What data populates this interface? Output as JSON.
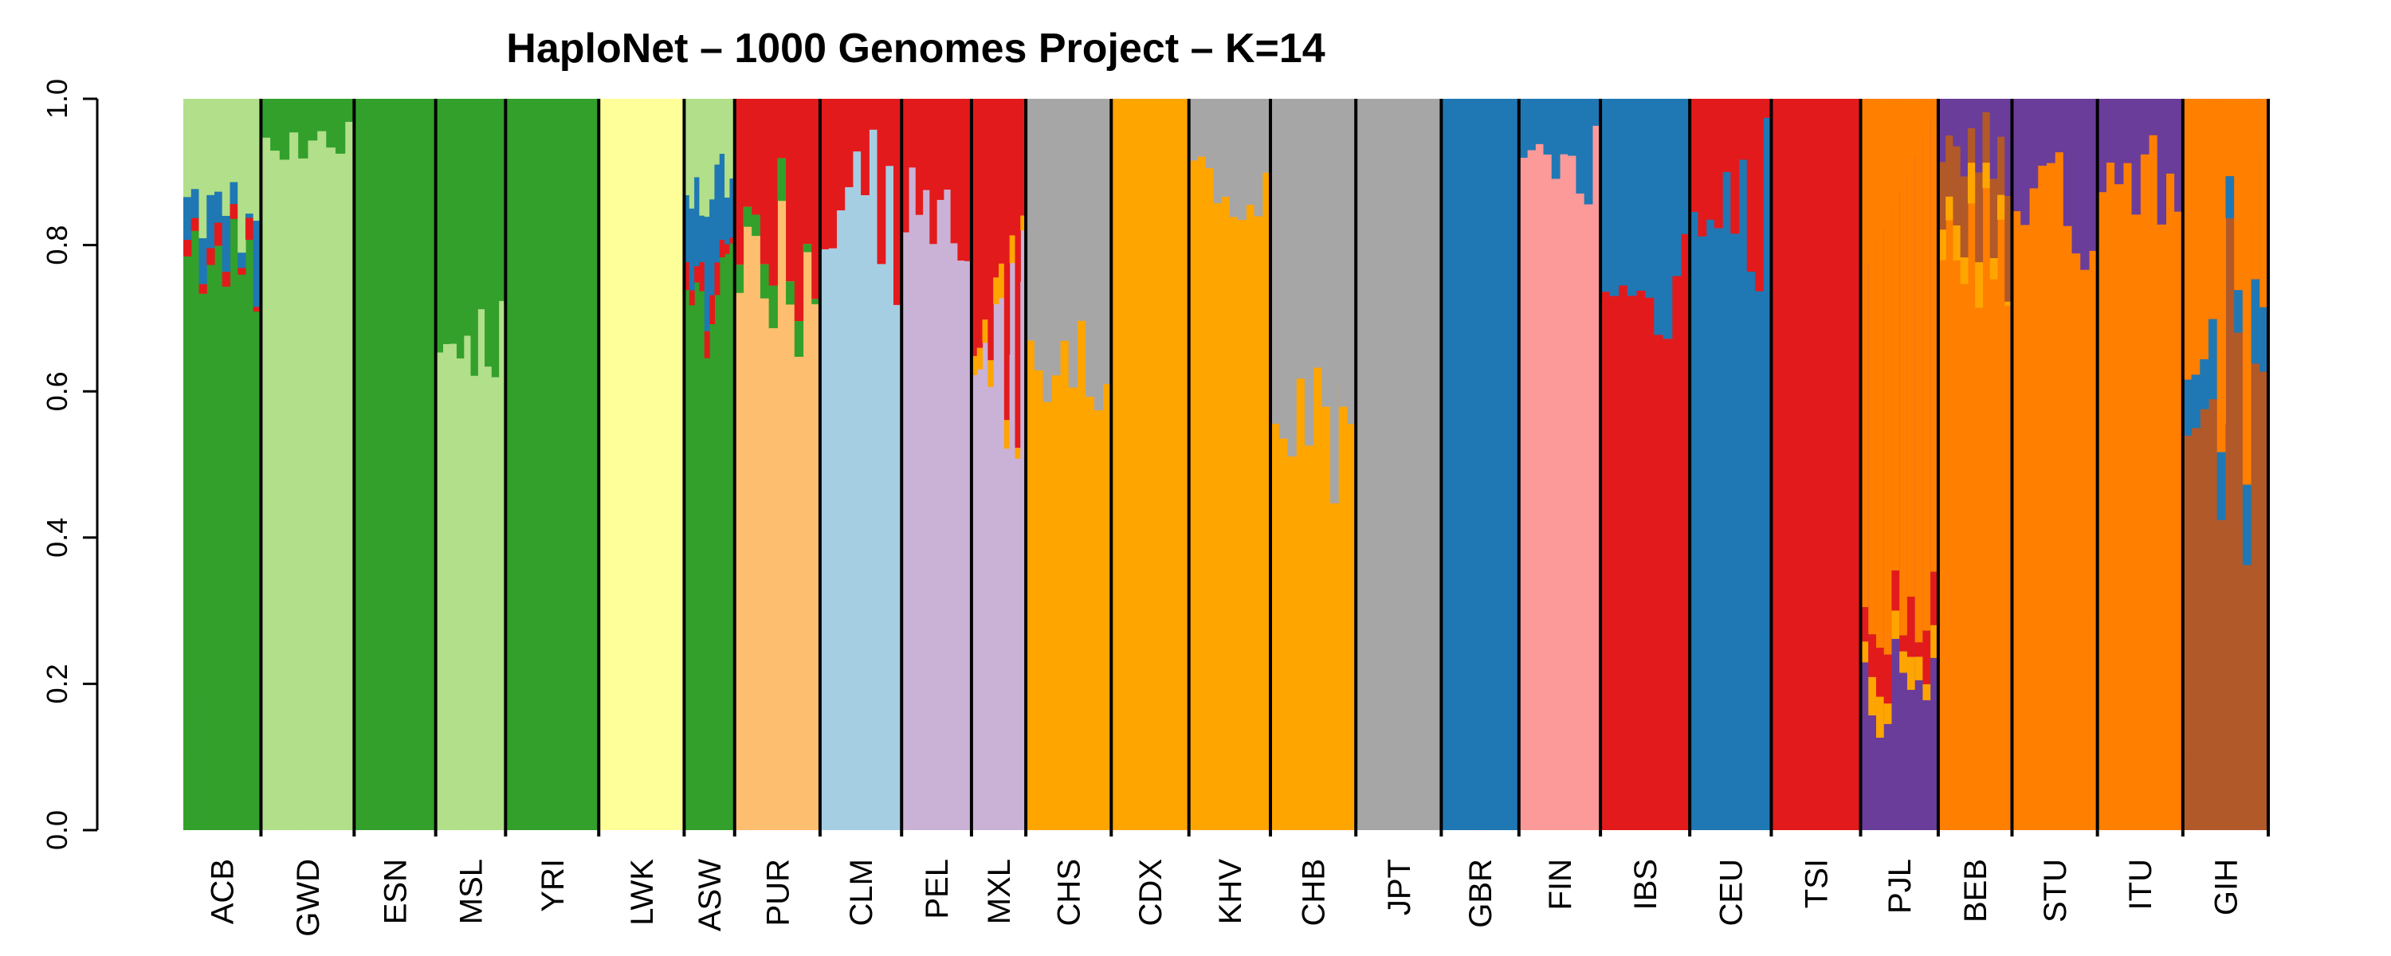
{
  "chart_data": {
    "type": "stacked-bar-admixture",
    "title": "HaploNet – 1000 Genomes Project – K=14",
    "xlabel": "",
    "ylabel": "",
    "ylim": [
      0,
      1
    ],
    "yticks": [
      "0.0",
      "0.2",
      "0.4",
      "0.6",
      "0.8",
      "1.0"
    ],
    "ytick_values": [
      0,
      0.2,
      0.4,
      0.6,
      0.8,
      1.0
    ],
    "colors": {
      "dark-green": "#33a02c",
      "light-green": "#b2df8a",
      "yellow": "#ffff99",
      "light-orange": "#fdbf6f",
      "light-blue": "#a6cee3",
      "lavender": "#cab2d6",
      "red": "#e31a1c",
      "gold": "#ffa500",
      "gray": "#a6a6a6",
      "blue": "#1f78b4",
      "pink": "#fb9a99",
      "purple": "#6a3d9a",
      "orange": "#ff7f00",
      "brown": "#b15928"
    },
    "populations": [
      {
        "label": "ACB",
        "relwidth": 1.0,
        "base": "dark-green",
        "components": [
          {
            "color": "dark-green",
            "min": 0.55,
            "max": 0.9
          },
          {
            "color": "light-green",
            "min": 0.05,
            "max": 0.25
          },
          {
            "color": "blue",
            "min": 0.0,
            "max": 0.12
          },
          {
            "color": "red",
            "min": 0.0,
            "max": 0.04
          }
        ]
      },
      {
        "label": "GWD",
        "relwidth": 1.2,
        "base": "light-green",
        "components": [
          {
            "color": "light-green",
            "min": 0.88,
            "max": 1.0
          },
          {
            "color": "dark-green",
            "min": 0.0,
            "max": 0.12
          }
        ]
      },
      {
        "label": "ESN",
        "relwidth": 1.05,
        "base": "dark-green",
        "components": [
          {
            "color": "dark-green",
            "min": 0.99,
            "max": 1.0
          }
        ]
      },
      {
        "label": "MSL",
        "relwidth": 0.9,
        "base": "light-green",
        "components": [
          {
            "color": "light-green",
            "min": 0.55,
            "max": 0.75
          },
          {
            "color": "dark-green",
            "min": 0.25,
            "max": 0.45
          }
        ]
      },
      {
        "label": "YRI",
        "relwidth": 1.2,
        "base": "dark-green",
        "components": [
          {
            "color": "dark-green",
            "min": 0.99,
            "max": 1.0
          }
        ]
      },
      {
        "label": "LWK",
        "relwidth": 1.1,
        "base": "yellow",
        "components": [
          {
            "color": "yellow",
            "min": 0.98,
            "max": 1.0
          }
        ]
      },
      {
        "label": "ASW",
        "relwidth": 0.65,
        "base": "dark-green",
        "components": [
          {
            "color": "dark-green",
            "min": 0.2,
            "max": 0.75
          },
          {
            "color": "light-green",
            "min": 0.05,
            "max": 0.2
          },
          {
            "color": "blue",
            "min": 0.02,
            "max": 0.2
          },
          {
            "color": "red",
            "min": 0.0,
            "max": 0.06
          }
        ]
      },
      {
        "label": "PUR",
        "relwidth": 1.1,
        "base": "light-orange",
        "components": [
          {
            "color": "light-orange",
            "min": 0.3,
            "max": 0.8
          },
          {
            "color": "red",
            "min": 0.0,
            "max": 0.4
          },
          {
            "color": "dark-green",
            "min": 0.0,
            "max": 0.08
          }
        ]
      },
      {
        "label": "CLM",
        "relwidth": 1.05,
        "base": "light-blue",
        "components": [
          {
            "color": "light-blue",
            "min": 0.25,
            "max": 0.95
          },
          {
            "color": "red",
            "min": 0.0,
            "max": 0.35
          }
        ]
      },
      {
        "label": "PEL",
        "relwidth": 0.9,
        "base": "lavender",
        "components": [
          {
            "color": "lavender",
            "min": 0.55,
            "max": 0.98
          },
          {
            "color": "red",
            "min": 0.0,
            "max": 0.3
          }
        ]
      },
      {
        "label": "MXL",
        "relwidth": 0.7,
        "base": "lavender",
        "components": [
          {
            "color": "lavender",
            "min": 0.25,
            "max": 0.7
          },
          {
            "color": "red",
            "min": 0.1,
            "max": 0.5
          },
          {
            "color": "gold",
            "min": 0.0,
            "max": 0.06
          }
        ]
      },
      {
        "label": "CHS",
        "relwidth": 1.1,
        "base": "gold",
        "components": [
          {
            "color": "gold",
            "min": 0.52,
            "max": 0.75
          },
          {
            "color": "gray",
            "min": 0.25,
            "max": 0.48
          }
        ]
      },
      {
        "label": "CDX",
        "relwidth": 1.0,
        "base": "gold",
        "components": [
          {
            "color": "gold",
            "min": 0.99,
            "max": 1.0
          }
        ]
      },
      {
        "label": "KHV",
        "relwidth": 1.05,
        "base": "gold",
        "components": [
          {
            "color": "gold",
            "min": 0.8,
            "max": 0.99
          },
          {
            "color": "gray",
            "min": 0.01,
            "max": 0.2
          }
        ]
      },
      {
        "label": "CHB",
        "relwidth": 1.1,
        "base": "gold",
        "components": [
          {
            "color": "gold",
            "min": 0.35,
            "max": 0.7
          },
          {
            "color": "gray",
            "min": 0.3,
            "max": 0.65
          }
        ]
      },
      {
        "label": "JPT",
        "relwidth": 1.1,
        "base": "gray",
        "components": [
          {
            "color": "gray",
            "min": 0.99,
            "max": 1.0
          }
        ]
      },
      {
        "label": "GBR",
        "relwidth": 1.0,
        "base": "blue",
        "components": [
          {
            "color": "blue",
            "min": 0.99,
            "max": 1.0
          }
        ]
      },
      {
        "label": "FIN",
        "relwidth": 1.05,
        "base": "pink",
        "components": [
          {
            "color": "pink",
            "min": 0.83,
            "max": 1.0
          },
          {
            "color": "blue",
            "min": 0.0,
            "max": 0.17
          }
        ]
      },
      {
        "label": "IBS",
        "relwidth": 1.15,
        "base": "red",
        "components": [
          {
            "color": "red",
            "min": 0.6,
            "max": 0.85
          },
          {
            "color": "blue",
            "min": 0.15,
            "max": 0.38
          }
        ]
      },
      {
        "label": "CEU",
        "relwidth": 1.05,
        "base": "blue",
        "components": [
          {
            "color": "blue",
            "min": 0.7,
            "max": 1.0
          },
          {
            "color": "red",
            "min": 0.0,
            "max": 0.3
          }
        ]
      },
      {
        "label": "TSI",
        "relwidth": 1.15,
        "base": "red",
        "components": [
          {
            "color": "red",
            "min": 0.97,
            "max": 1.0
          }
        ]
      },
      {
        "label": "PJL",
        "relwidth": 1.0,
        "base": "purple",
        "components": [
          {
            "color": "purple",
            "min": 0.03,
            "max": 0.25
          },
          {
            "color": "orange",
            "min": 0.5,
            "max": 0.85
          },
          {
            "color": "red",
            "min": 0.0,
            "max": 0.1
          },
          {
            "color": "gold",
            "min": 0.0,
            "max": 0.08
          }
        ]
      },
      {
        "label": "BEB",
        "relwidth": 0.95,
        "base": "orange",
        "components": [
          {
            "color": "orange",
            "min": 0.55,
            "max": 0.8
          },
          {
            "color": "purple",
            "min": 0.0,
            "max": 0.15
          },
          {
            "color": "brown",
            "min": 0.02,
            "max": 0.15
          },
          {
            "color": "gold",
            "min": 0.0,
            "max": 0.1
          }
        ]
      },
      {
        "label": "STU",
        "relwidth": 1.1,
        "base": "orange",
        "components": [
          {
            "color": "orange",
            "min": 0.7,
            "max": 0.98
          },
          {
            "color": "purple",
            "min": 0.01,
            "max": 0.25
          }
        ]
      },
      {
        "label": "ITU",
        "relwidth": 1.1,
        "base": "orange",
        "components": [
          {
            "color": "orange",
            "min": 0.78,
            "max": 0.98
          },
          {
            "color": "purple",
            "min": 0.01,
            "max": 0.2
          }
        ]
      },
      {
        "label": "GIH",
        "relwidth": 1.1,
        "base": "brown",
        "components": [
          {
            "color": "brown",
            "min": 0.08,
            "max": 0.9
          },
          {
            "color": "orange",
            "min": 0.0,
            "max": 0.6
          },
          {
            "color": "blue",
            "min": 0.0,
            "max": 0.15
          }
        ]
      }
    ]
  }
}
